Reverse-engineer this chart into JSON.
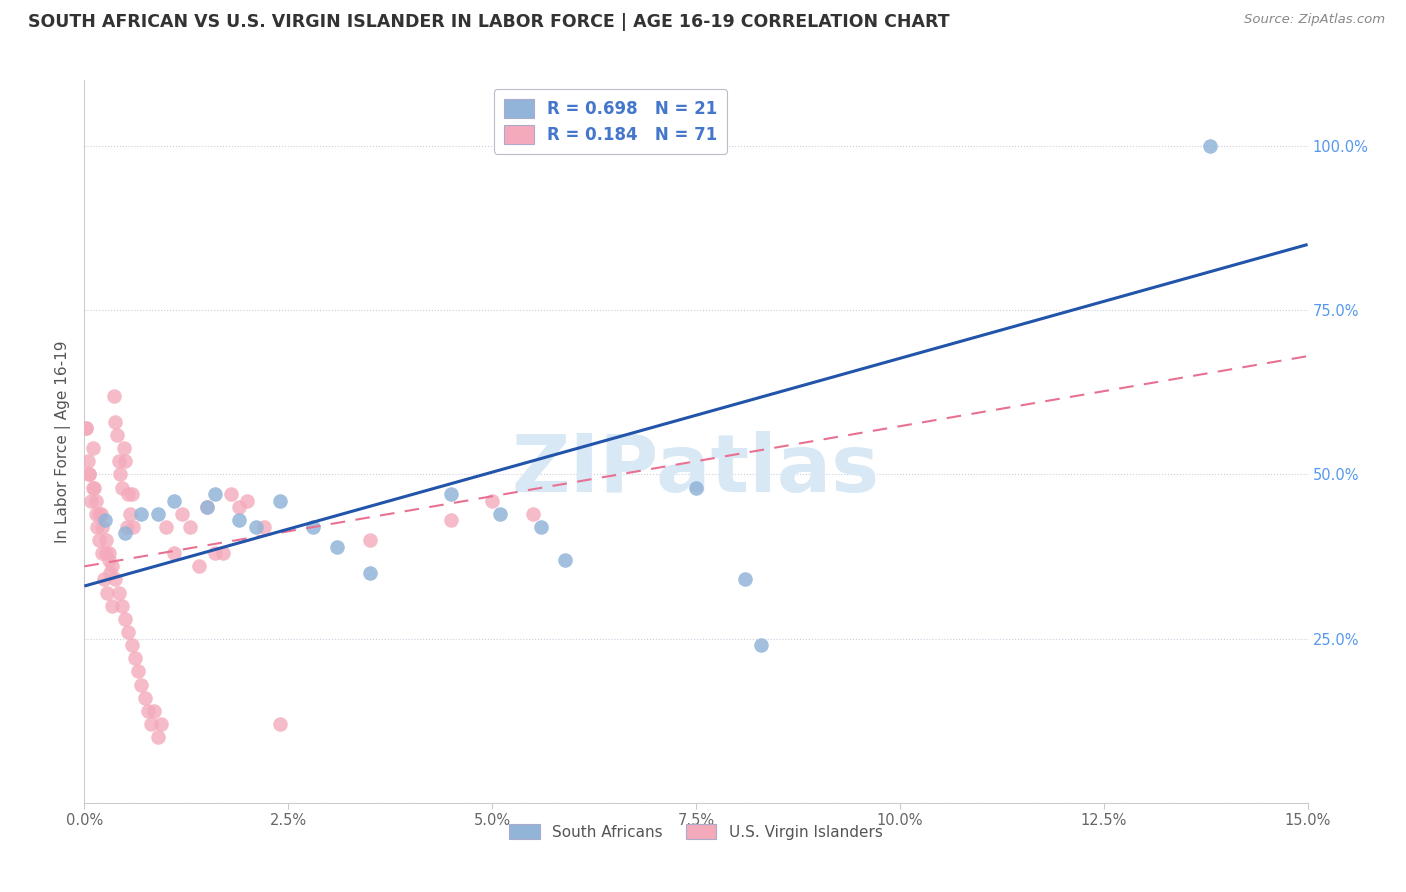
{
  "title": "SOUTH AFRICAN VS U.S. VIRGIN ISLANDER IN LABOR FORCE | AGE 16-19 CORRELATION CHART",
  "source": "Source: ZipAtlas.com",
  "xlim": [
    0.0,
    15.0
  ],
  "ylim": [
    0.0,
    110.0
  ],
  "x_ticks": [
    0.0,
    2.5,
    5.0,
    7.5,
    10.0,
    12.5,
    15.0
  ],
  "x_tick_labels": [
    "0.0%",
    "2.5%",
    "5.0%",
    "7.5%",
    "10.0%",
    "12.5%",
    "15.0%"
  ],
  "y_ticks": [
    0.0,
    25.0,
    50.0,
    75.0,
    100.0
  ],
  "y_tick_labels_right": [
    "",
    "25.0%",
    "50.0%",
    "75.0%",
    "100.0%"
  ],
  "blue_R": "0.698",
  "blue_N": "21",
  "pink_R": "0.184",
  "pink_N": "71",
  "blue_color": "#92B4D8",
  "pink_color": "#F4AABB",
  "blue_line_color": "#2255AA",
  "pink_line_color": "#E87090",
  "watermark": "ZIPatlas",
  "watermark_color": "#D8E8F4",
  "legend_label_blue": "South Africans",
  "legend_label_pink": "U.S. Virgin Islanders",
  "blue_line_x0": 0.0,
  "blue_line_y0": 33.0,
  "blue_line_x1": 15.0,
  "blue_line_y1": 85.0,
  "pink_line_x0": 0.0,
  "pink_line_y0": 36.0,
  "pink_line_x1": 15.0,
  "pink_line_y1": 68.0,
  "blue_x": [
    0.25,
    0.5,
    0.7,
    0.9,
    1.1,
    1.5,
    1.6,
    1.9,
    2.1,
    2.4,
    2.8,
    3.1,
    3.5,
    4.5,
    5.1,
    5.6,
    5.9,
    7.5,
    8.1,
    8.3,
    13.8
  ],
  "blue_y": [
    43,
    41,
    44,
    44,
    46,
    45,
    47,
    43,
    42,
    46,
    42,
    39,
    35,
    47,
    44,
    42,
    37,
    48,
    34,
    24,
    100
  ],
  "pink_x": [
    0.02,
    0.04,
    0.06,
    0.08,
    0.1,
    0.12,
    0.14,
    0.16,
    0.18,
    0.2,
    0.22,
    0.24,
    0.26,
    0.28,
    0.3,
    0.32,
    0.34,
    0.36,
    0.38,
    0.4,
    0.42,
    0.44,
    0.46,
    0.48,
    0.5,
    0.52,
    0.54,
    0.56,
    0.58,
    0.6,
    0.02,
    0.06,
    0.1,
    0.14,
    0.18,
    0.22,
    0.26,
    0.3,
    0.34,
    0.38,
    0.42,
    0.46,
    0.5,
    0.54,
    0.58,
    0.62,
    0.66,
    0.7,
    0.74,
    0.78,
    0.82,
    0.86,
    0.9,
    0.94,
    1.0,
    1.1,
    1.2,
    1.3,
    1.4,
    1.5,
    1.6,
    1.7,
    1.8,
    1.9,
    2.0,
    2.2,
    2.4,
    3.5,
    4.5,
    5.0,
    5.5
  ],
  "pink_y": [
    57,
    52,
    50,
    46,
    54,
    48,
    44,
    42,
    40,
    44,
    38,
    34,
    38,
    32,
    37,
    35,
    30,
    62,
    58,
    56,
    52,
    50,
    48,
    54,
    52,
    42,
    47,
    44,
    47,
    42,
    57,
    50,
    48,
    46,
    44,
    42,
    40,
    38,
    36,
    34,
    32,
    30,
    28,
    26,
    24,
    22,
    20,
    18,
    16,
    14,
    12,
    14,
    10,
    12,
    42,
    38,
    44,
    42,
    36,
    45,
    38,
    38,
    47,
    45,
    46,
    42,
    12,
    40,
    43,
    46,
    44
  ]
}
